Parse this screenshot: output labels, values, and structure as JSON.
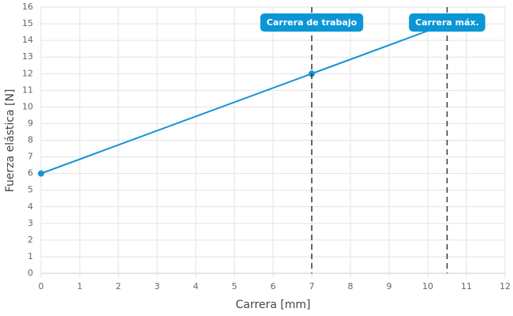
{
  "chart_data": {
    "type": "line",
    "xlabel": "Carrera [mm]",
    "ylabel": "Fuerza elástica [N]",
    "x": [
      0,
      7,
      10.5
    ],
    "series": [
      {
        "color": "#1a94d1",
        "values": [
          6,
          12,
          15
        ]
      }
    ],
    "xlim": [
      0,
      12
    ],
    "xticks": [
      0,
      1,
      2,
      3,
      4,
      5,
      6,
      7,
      8,
      9,
      10,
      11,
      12
    ],
    "ylim": [
      0,
      16
    ],
    "yticks": [
      0,
      1,
      2,
      3,
      4,
      5,
      6,
      7,
      8,
      9,
      10,
      11,
      12,
      13,
      14,
      15,
      16
    ],
    "grid": true,
    "annotations": [
      {
        "x": 7,
        "label": "Carrera de trabajo"
      },
      {
        "x": 10.5,
        "label": "Carrera máx."
      }
    ]
  }
}
